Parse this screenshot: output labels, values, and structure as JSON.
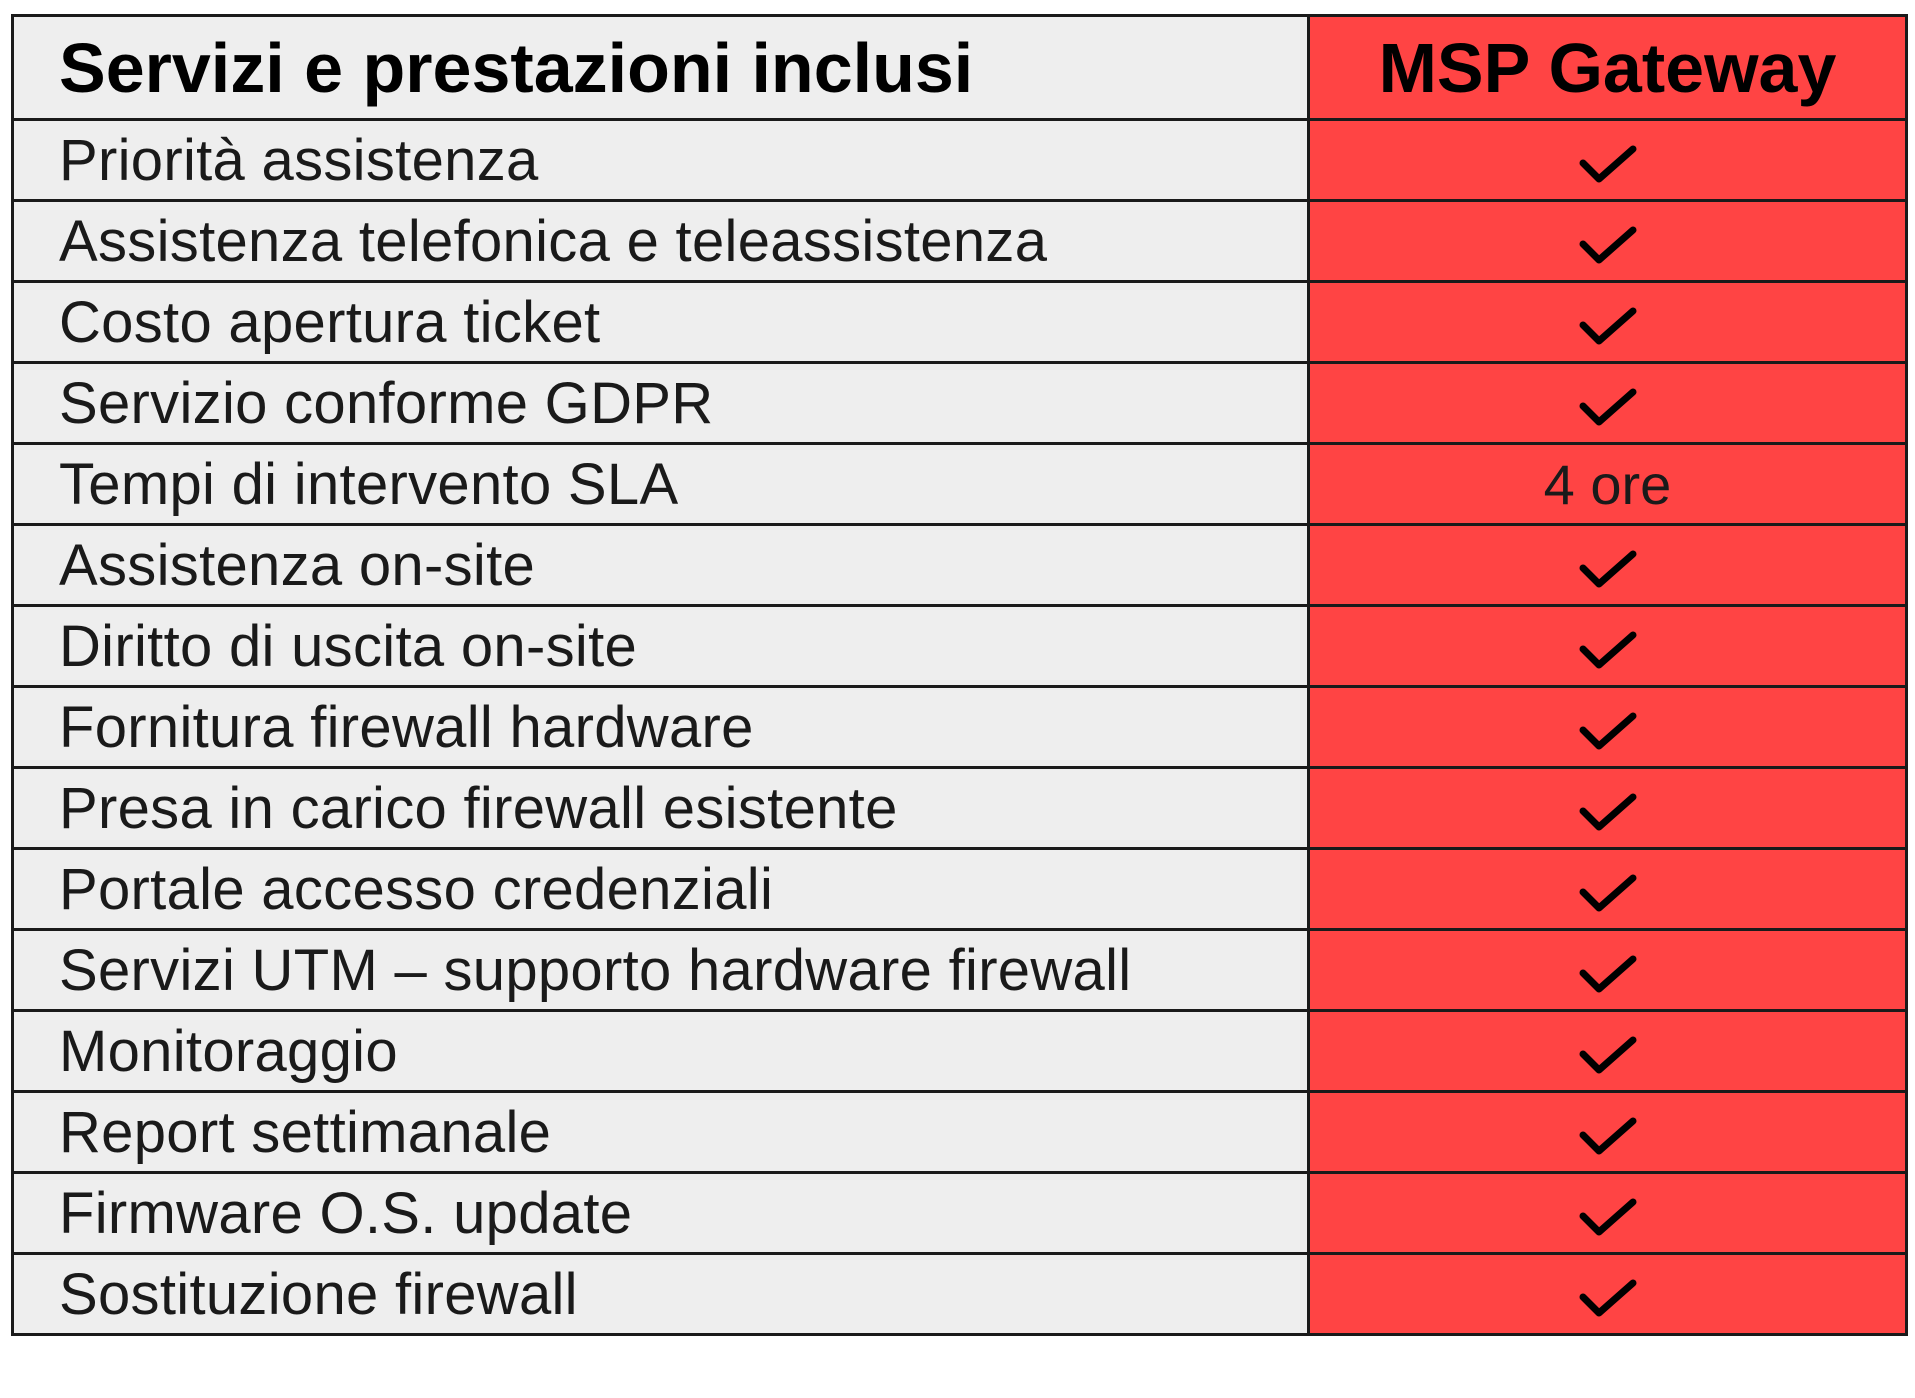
{
  "header": {
    "services_title": "Servizi e prestazioni inclusi",
    "plan_title": "MSP Gateway"
  },
  "rows": [
    {
      "service": "Priorità assistenza",
      "value": "",
      "icon": "check-icon"
    },
    {
      "service": "Assistenza telefonica e teleassistenza",
      "value": "",
      "icon": "check-icon"
    },
    {
      "service": "Costo apertura ticket",
      "value": "",
      "icon": "check-icon"
    },
    {
      "service": "Servizio conforme GDPR",
      "value": "",
      "icon": "check-icon"
    },
    {
      "service": "Tempi di intervento SLA",
      "value": "4 ore",
      "icon": ""
    },
    {
      "service": "Assistenza on-site",
      "value": "",
      "icon": "check-icon"
    },
    {
      "service": "Diritto di uscita on-site",
      "value": "",
      "icon": "check-icon"
    },
    {
      "service": "Fornitura firewall hardware",
      "value": "",
      "icon": "check-icon"
    },
    {
      "service": "Presa in carico firewall esistente",
      "value": "",
      "icon": "check-icon"
    },
    {
      "service": "Portale accesso credenziali",
      "value": "",
      "icon": "check-icon"
    },
    {
      "service": "Servizi UTM – supporto hardware firewall",
      "value": "",
      "icon": "check-icon"
    },
    {
      "service": "Monitoraggio",
      "value": "",
      "icon": "check-icon"
    },
    {
      "service": "Report settimanale",
      "value": "",
      "icon": "check-icon"
    },
    {
      "service": "Firmware O.S. update",
      "value": "",
      "icon": "check-icon"
    },
    {
      "service": "Sostituzione firewall",
      "value": "",
      "icon": "check-icon"
    }
  ],
  "colors": {
    "service_bg": "#eeeeee",
    "plan_bg": "#ff4444",
    "border": "#1a1a1a",
    "text": "#1a1a1a"
  }
}
